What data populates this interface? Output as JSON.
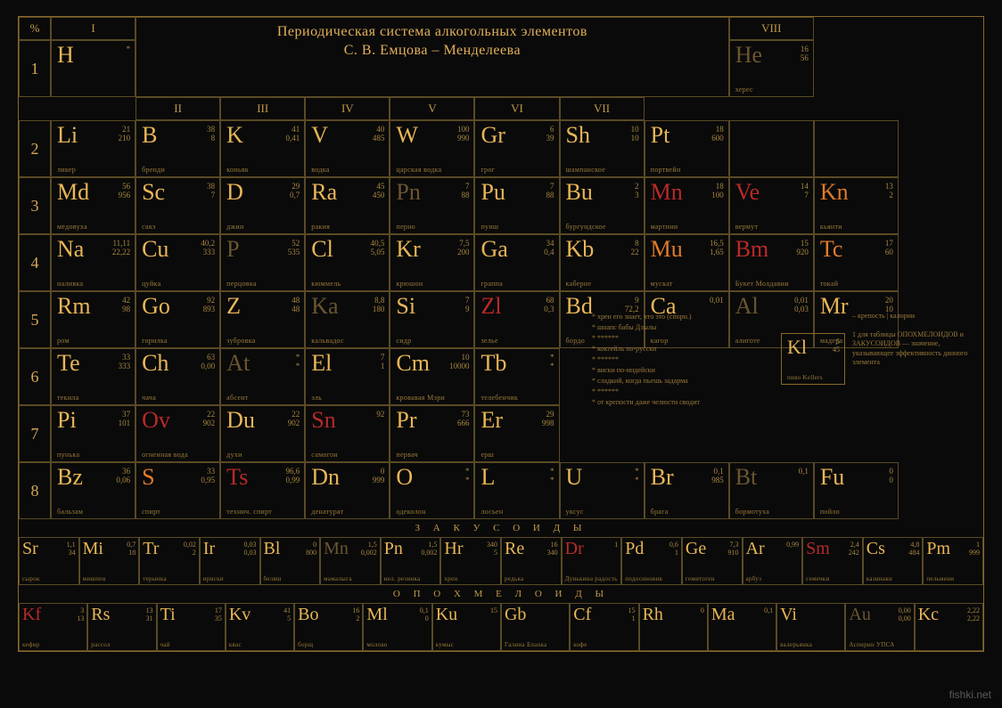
{
  "title_line1": "Периодическая система алкогольных элементов",
  "title_line2": "С. В. Емцова – Менделеева",
  "percent": "%",
  "romans": [
    "I",
    "II",
    "III",
    "IV",
    "V",
    "VI",
    "VII",
    "VIII"
  ],
  "rows": [
    "1",
    "2",
    "3",
    "4",
    "5",
    "6",
    "7",
    "8"
  ],
  "colors": {
    "gold": "#e8b657",
    "orange": "#e07a2a",
    "dark": "#6b5530",
    "red": "#b82a2a",
    "border": "#5a4a25",
    "bg": "#0a0a0a",
    "text_muted": "#9a7a3a"
  },
  "main": [
    [
      {
        "sym": "H",
        "cls": "gold",
        "n1": "*",
        "n2": "",
        "name": ""
      },
      null,
      null,
      null,
      null,
      null,
      null,
      {
        "sym": "He",
        "cls": "dark",
        "n1": "16",
        "n2": "56",
        "name": "херес"
      },
      null,
      null,
      null
    ],
    [
      {
        "sym": "Li",
        "cls": "gold",
        "n1": "21",
        "n2": "210",
        "name": "ликер"
      },
      {
        "sym": "B",
        "cls": "gold",
        "n1": "38",
        "n2": "8",
        "name": "бренди"
      },
      {
        "sym": "K",
        "cls": "gold",
        "n1": "41",
        "n2": "0,41",
        "name": "коньяк"
      },
      {
        "sym": "V",
        "cls": "gold",
        "n1": "40",
        "n2": "485",
        "name": "водка"
      },
      {
        "sym": "W",
        "cls": "gold",
        "n1": "100",
        "n2": "990",
        "name": "царская водка"
      },
      {
        "sym": "Gr",
        "cls": "gold",
        "n1": "6",
        "n2": "39",
        "name": "грог"
      },
      {
        "sym": "Sh",
        "cls": "gold",
        "n1": "10",
        "n2": "10",
        "name": "шампанское"
      },
      {
        "sym": "Pt",
        "cls": "gold",
        "n1": "18",
        "n2": "600",
        "name": "портвейн"
      },
      null,
      null,
      null
    ],
    [
      {
        "sym": "Md",
        "cls": "gold",
        "n1": "56",
        "n2": "956",
        "name": "медовуха"
      },
      {
        "sym": "Sc",
        "cls": "gold",
        "n1": "38",
        "n2": "7",
        "name": "сакэ"
      },
      {
        "sym": "D",
        "cls": "gold",
        "n1": "29",
        "n2": "0,7",
        "name": "джин"
      },
      {
        "sym": "Ra",
        "cls": "gold",
        "n1": "45",
        "n2": "450",
        "name": "ракия"
      },
      {
        "sym": "Pn",
        "cls": "dark",
        "n1": "7",
        "n2": "88",
        "name": "перно"
      },
      {
        "sym": "Pu",
        "cls": "gold",
        "n1": "7",
        "n2": "88",
        "name": "пунш"
      },
      {
        "sym": "Bu",
        "cls": "gold",
        "n1": "2",
        "n2": "3",
        "name": "бургундское"
      },
      {
        "sym": "Mn",
        "cls": "red",
        "n1": "18",
        "n2": "100",
        "name": "мартини"
      },
      {
        "sym": "Ve",
        "cls": "red",
        "n1": "14",
        "n2": "7",
        "name": "вермут"
      },
      {
        "sym": "Kn",
        "cls": "orange",
        "n1": "13",
        "n2": "2",
        "name": "кьянти"
      },
      null
    ],
    [
      {
        "sym": "Na",
        "cls": "gold",
        "n1": "11,11",
        "n2": "22,22",
        "name": "наливка"
      },
      {
        "sym": "Cu",
        "cls": "gold",
        "n1": "40,2",
        "n2": "333",
        "name": "цуйка"
      },
      {
        "sym": "P",
        "cls": "dark",
        "n1": "52",
        "n2": "535",
        "name": "перцовка"
      },
      {
        "sym": "Cl",
        "cls": "gold",
        "n1": "40,5",
        "n2": "5,05",
        "name": "кюммель"
      },
      {
        "sym": "Kr",
        "cls": "gold",
        "n1": "7,5",
        "n2": "200",
        "name": "крюшон"
      },
      {
        "sym": "Ga",
        "cls": "gold",
        "n1": "34",
        "n2": "0,4",
        "name": "граппа"
      },
      {
        "sym": "Kb",
        "cls": "gold",
        "n1": "8",
        "n2": "22",
        "name": "каберне"
      },
      {
        "sym": "Mu",
        "cls": "orange",
        "n1": "16,5",
        "n2": "1,65",
        "name": "мускат"
      },
      {
        "sym": "Bm",
        "cls": "red",
        "n1": "15",
        "n2": "920",
        "name": "Букет Молдавии"
      },
      {
        "sym": "Tc",
        "cls": "orange",
        "n1": "17",
        "n2": "60",
        "name": "токай"
      },
      null
    ],
    [
      {
        "sym": "Rm",
        "cls": "gold",
        "n1": "42",
        "n2": "98",
        "name": "ром"
      },
      {
        "sym": "Go",
        "cls": "gold",
        "n1": "92",
        "n2": "893",
        "name": "горилка"
      },
      {
        "sym": "Z",
        "cls": "gold",
        "n1": "48",
        "n2": "48",
        "name": "зубровка"
      },
      {
        "sym": "Ka",
        "cls": "dark",
        "n1": "8,8",
        "n2": "180",
        "name": "кальвадос"
      },
      {
        "sym": "Si",
        "cls": "gold",
        "n1": "7",
        "n2": "9",
        "name": "сидр"
      },
      {
        "sym": "Zl",
        "cls": "red",
        "n1": "68",
        "n2": "0,3",
        "name": "зелье"
      },
      {
        "sym": "Bd",
        "cls": "gold",
        "n1": "9",
        "n2": "72,2",
        "name": "бордо"
      },
      {
        "sym": "Ca",
        "cls": "gold",
        "n1": "0,01",
        "n2": "",
        "name": "кагор"
      },
      {
        "sym": "Al",
        "cls": "dark",
        "n1": "0,01",
        "n2": "0,03",
        "name": "алиготе"
      },
      {
        "sym": "Mr",
        "cls": "gold",
        "n1": "20",
        "n2": "10",
        "name": "мадера"
      },
      null
    ],
    [
      {
        "sym": "Te",
        "cls": "gold",
        "n1": "33",
        "n2": "333",
        "name": "текила"
      },
      {
        "sym": "Ch",
        "cls": "gold",
        "n1": "63",
        "n2": "0,00",
        "name": "чача"
      },
      {
        "sym": "At",
        "cls": "dark",
        "n1": "*",
        "n2": "*",
        "name": "абсент"
      },
      {
        "sym": "El",
        "cls": "gold",
        "n1": "7",
        "n2": "1",
        "name": "эль"
      },
      {
        "sym": "Cm",
        "cls": "gold",
        "n1": "10",
        "n2": "10000",
        "name": "кровавая Мэри"
      },
      {
        "sym": "Tb",
        "cls": "gold",
        "n1": "*",
        "n2": "*",
        "name": "телебенчик"
      },
      null,
      null,
      null,
      null,
      null
    ],
    [
      {
        "sym": "Pi",
        "cls": "gold",
        "n1": "37",
        "n2": "101",
        "name": "пунька"
      },
      {
        "sym": "Ov",
        "cls": "red",
        "n1": "22",
        "n2": "902",
        "name": "огненная вода"
      },
      {
        "sym": "Du",
        "cls": "gold",
        "n1": "22",
        "n2": "902",
        "name": "духи"
      },
      {
        "sym": "Sn",
        "cls": "red",
        "n1": "92",
        "n2": "",
        "name": "самогон"
      },
      {
        "sym": "Pr",
        "cls": "gold",
        "n1": "73",
        "n2": "666",
        "name": "первач"
      },
      {
        "sym": "Er",
        "cls": "gold",
        "n1": "29",
        "n2": "998",
        "name": "ерш"
      },
      null,
      null,
      null,
      null,
      null
    ],
    [
      {
        "sym": "Bz",
        "cls": "gold",
        "n1": "36",
        "n2": "0,06",
        "name": "бальзам"
      },
      {
        "sym": "S",
        "cls": "orange",
        "n1": "33",
        "n2": "0,95",
        "name": "спирт"
      },
      {
        "sym": "Ts",
        "cls": "red",
        "n1": "96,6",
        "n2": "0,99",
        "name": "технич. спирт"
      },
      {
        "sym": "Dn",
        "cls": "gold",
        "n1": "0",
        "n2": "999",
        "name": "денатурат"
      },
      {
        "sym": "O",
        "cls": "gold",
        "n1": "*",
        "n2": "*",
        "name": "одеколон"
      },
      {
        "sym": "L",
        "cls": "gold",
        "n1": "*",
        "n2": "*",
        "name": "лосьен"
      },
      {
        "sym": "U",
        "cls": "gold",
        "n1": "*",
        "n2": "*",
        "name": "уксус"
      },
      {
        "sym": "Br",
        "cls": "gold",
        "n1": "0,1",
        "n2": "985",
        "name": "брага"
      },
      {
        "sym": "Bt",
        "cls": "dark",
        "n1": "0,1",
        "n2": "",
        "name": "бормотуха"
      },
      {
        "sym": "Fu",
        "cls": "gold",
        "n1": "0",
        "n2": "0",
        "name": "пойло"
      },
      null
    ]
  ],
  "side_notes": [
    "хрен его знает, что это (спорн.)",
    "шнапс бабы Дзылы",
    "******",
    "коктейль по-русски",
    "******",
    "виски по-индейски",
    "сладкий, когда пьешь задарма",
    "******",
    "от крепости даже челюсти сводит"
  ],
  "kl": {
    "sym": "Kl",
    "n1": "5",
    "n2": "45",
    "name": "пиво Kellers"
  },
  "legend": {
    "n1": "– крепость | калории",
    "n2": "1 для таблицы ОПОХМЕЛОИДОВ и ЗАКУСОИДОВ — значение, указывающее эффективность данного элемента"
  },
  "sec1_title": "З А К У С О И Д Ы",
  "sec1": [
    {
      "sym": "Sr",
      "cls": "gold",
      "n1": "1,1",
      "n2": "34",
      "name": "сырок"
    },
    {
      "sym": "Mi",
      "cls": "gold",
      "n1": "0,7",
      "n2": "18",
      "name": "мишпен"
    },
    {
      "sym": "Tr",
      "cls": "gold",
      "n1": "0,02",
      "n2": "2",
      "name": "терынка"
    },
    {
      "sym": "Ir",
      "cls": "gold",
      "n1": "0,03",
      "n2": "0,03",
      "name": "ириски"
    },
    {
      "sym": "Bl",
      "cls": "gold",
      "n1": "0",
      "n2": "800",
      "name": "беляш"
    },
    {
      "sym": "Mn",
      "cls": "dark",
      "n1": "1,5",
      "n2": "0,002",
      "name": "мамалыга"
    },
    {
      "sym": "Pn",
      "cls": "gold",
      "n1": "1,5",
      "n2": "0,002",
      "name": "нел. резинка"
    },
    {
      "sym": "Hr",
      "cls": "gold",
      "n1": "340",
      "n2": "5",
      "name": "хрен"
    },
    {
      "sym": "Re",
      "cls": "gold",
      "n1": "16",
      "n2": "340",
      "name": "редька"
    },
    {
      "sym": "Dr",
      "cls": "red",
      "n1": "1",
      "n2": "",
      "name": "Дунькина радость"
    },
    {
      "sym": "Pd",
      "cls": "gold",
      "n1": "0,6",
      "n2": "1",
      "name": "подосиновик"
    },
    {
      "sym": "Ge",
      "cls": "gold",
      "n1": "7,3",
      "n2": "910",
      "name": "гемитоген"
    },
    {
      "sym": "Ar",
      "cls": "gold",
      "n1": "0,99",
      "n2": "",
      "name": "арбуз"
    },
    {
      "sym": "Sm",
      "cls": "red",
      "n1": "2,4",
      "n2": "242",
      "name": "семечки"
    },
    {
      "sym": "Cs",
      "cls": "gold",
      "n1": "4,8",
      "n2": "484",
      "name": "казинаки"
    },
    {
      "sym": "Pm",
      "cls": "gold",
      "n1": "1",
      "n2": "999",
      "name": "пельмени"
    }
  ],
  "sec2_title": "О П О Х М Е Л О И Д Ы",
  "sec2": [
    {
      "sym": "Kf",
      "cls": "red",
      "n1": "3",
      "n2": "13",
      "name": "кефир"
    },
    {
      "sym": "Rs",
      "cls": "gold",
      "n1": "13",
      "n2": "31",
      "name": "рассол"
    },
    {
      "sym": "Ti",
      "cls": "gold",
      "n1": "17",
      "n2": "35",
      "name": "чай"
    },
    {
      "sym": "Kv",
      "cls": "gold",
      "n1": "41",
      "n2": "5",
      "name": "квас"
    },
    {
      "sym": "Bo",
      "cls": "gold",
      "n1": "16",
      "n2": "2",
      "name": "борщ"
    },
    {
      "sym": "Ml",
      "cls": "gold",
      "n1": "0,1",
      "n2": "0",
      "name": "молоко"
    },
    {
      "sym": "Ku",
      "cls": "gold",
      "n1": "15",
      "n2": "",
      "name": "кумыс"
    },
    {
      "sym": "Gb",
      "cls": "gold",
      "n1": "",
      "n2": "",
      "name": "Галина Бланка"
    },
    {
      "sym": "Cf",
      "cls": "gold",
      "n1": "15",
      "n2": "1",
      "name": "кофе"
    },
    {
      "sym": "Rh",
      "cls": "gold",
      "n1": "0",
      "n2": "",
      "name": ""
    },
    {
      "sym": "Ma",
      "cls": "gold",
      "n1": "0,1",
      "n2": "",
      "name": ""
    },
    {
      "sym": "Vi",
      "cls": "gold",
      "n1": "",
      "n2": "",
      "name": "валерьянка"
    },
    {
      "sym": "Au",
      "cls": "dark",
      "n1": "0,00",
      "n2": "0,00",
      "name": "Аспирин УПСА"
    },
    {
      "sym": "Kc",
      "cls": "gold",
      "n1": "2,22",
      "n2": "2,22",
      "name": ""
    }
  ],
  "watermark": "fishki.net"
}
